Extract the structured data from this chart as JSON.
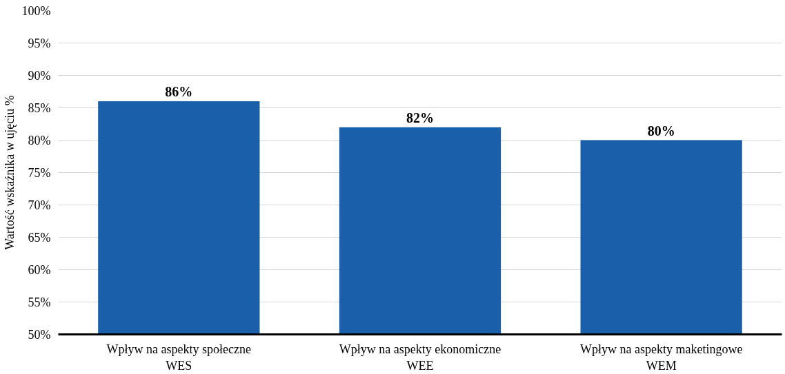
{
  "chart_data": {
    "type": "bar",
    "ylabel": "Wartość wskaźnika w ujęciu %",
    "categories": [
      "Wpływ na aspekty społeczne\nWES",
      "Wpływ na aspekty ekonomiczne\nWEE",
      "Wpływ na aspekty maketingowe\nWEM"
    ],
    "values": [
      86,
      82,
      80
    ],
    "color": "#1a5faa",
    "value_labels": [
      "86%",
      "82%",
      "80%"
    ],
    "ylim": [
      50,
      100
    ],
    "yticks": [
      {
        "value": 50,
        "label": "50%"
      },
      {
        "value": 55,
        "label": "55%"
      },
      {
        "value": 60,
        "label": "60%"
      },
      {
        "value": 65,
        "label": "65%"
      },
      {
        "value": 70,
        "label": "70%"
      },
      {
        "value": 75,
        "label": "75%"
      },
      {
        "value": 80,
        "label": "80%"
      },
      {
        "value": 85,
        "label": "85%"
      },
      {
        "value": 90,
        "label": "90%"
      },
      {
        "value": 95,
        "label": "95%"
      },
      {
        "value": 100,
        "label": "100%"
      }
    ],
    "grid": "y"
  }
}
